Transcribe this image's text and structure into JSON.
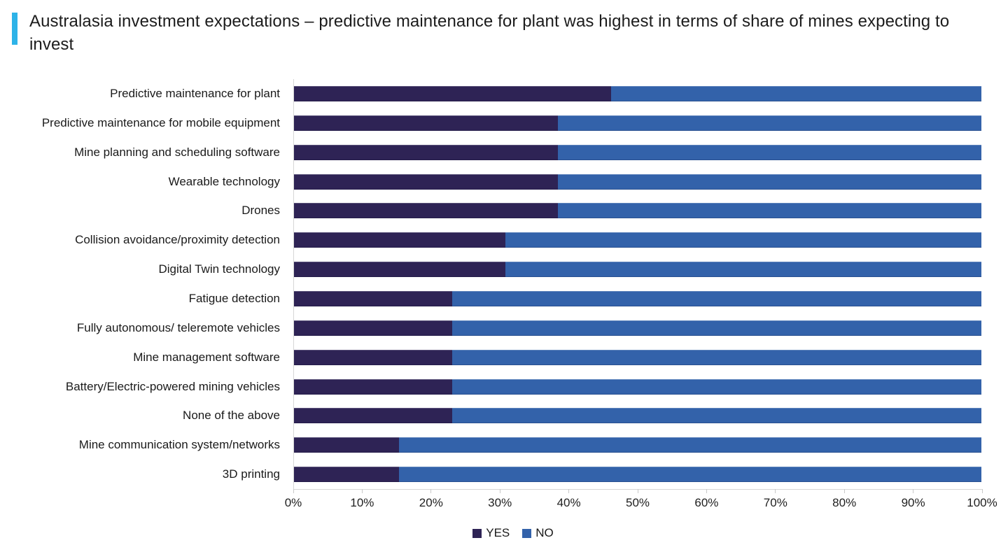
{
  "title": {
    "text": "Australasia investment expectations – predictive maintenance for plant was highest in terms of share of mines expecting to invest",
    "accent_color": "#2DB3E8"
  },
  "chart_data": {
    "type": "bar",
    "orientation": "horizontal",
    "stacked": true,
    "unit": "%",
    "xlim": [
      0,
      100
    ],
    "grid": false,
    "legend_position": "bottom",
    "x_ticks": [
      "0%",
      "10%",
      "20%",
      "30%",
      "40%",
      "50%",
      "60%",
      "70%",
      "80%",
      "90%",
      "100%"
    ],
    "categories": [
      "Predictive maintenance for plant",
      "Predictive maintenance for mobile equipment",
      "Mine planning and scheduling software",
      "Wearable technology",
      "Drones",
      "Collision avoidance/proximity detection",
      "Digital Twin technology",
      "Fatigue detection",
      "Fully autonomous/ teleremote vehicles",
      "Mine management software",
      "Battery/Electric-powered mining vehicles",
      "None of the above",
      "Mine communication system/networks",
      "3D printing"
    ],
    "series": [
      {
        "name": "YES",
        "color": "#2E2355",
        "values": [
          46.2,
          38.5,
          38.5,
          38.5,
          38.5,
          30.8,
          30.8,
          23.1,
          23.1,
          23.1,
          23.1,
          23.1,
          15.4,
          15.4
        ]
      },
      {
        "name": "NO",
        "color": "#3362AA",
        "values": [
          53.8,
          61.5,
          61.5,
          61.5,
          61.5,
          69.2,
          69.2,
          76.9,
          76.9,
          76.9,
          76.9,
          76.9,
          84.6,
          84.6
        ]
      }
    ]
  }
}
